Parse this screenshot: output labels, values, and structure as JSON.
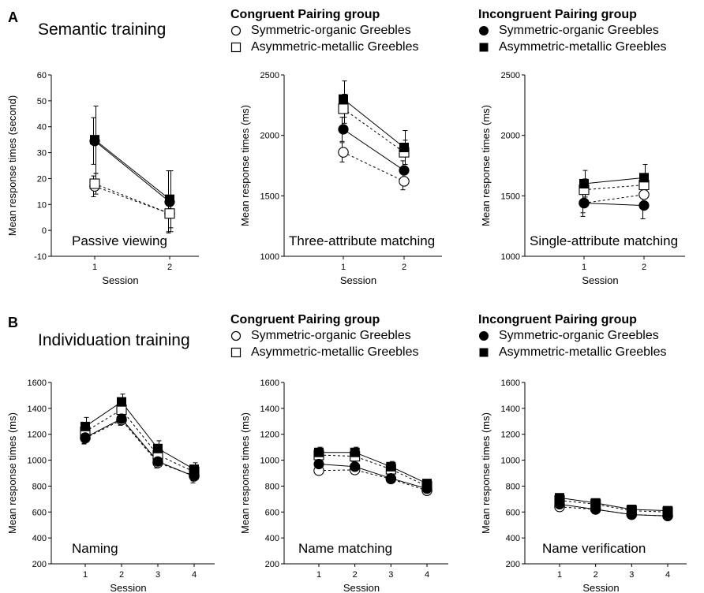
{
  "panels": {
    "a": {
      "letter": "A",
      "title": "Semantic training"
    },
    "b": {
      "letter": "B",
      "title": "Individuation training"
    }
  },
  "legends": {
    "congruent": {
      "heading": "Congruent Pairing group",
      "items": [
        {
          "label": "Symmetric-organic Greebles",
          "marker": "open-circle"
        },
        {
          "label": "Asymmetric-metallic Greebles",
          "marker": "open-square"
        }
      ]
    },
    "incongruent": {
      "heading": "Incongruent Pairing group",
      "items": [
        {
          "label": "Symmetric-organic Greebles",
          "marker": "filled-circle"
        },
        {
          "label": "Asymmetric-metallic Greebles",
          "marker": "filled-square"
        }
      ]
    }
  },
  "chart_data": [
    {
      "type": "line",
      "panel": "A",
      "title": "Passive viewing",
      "xlabel": "Session",
      "ylabel": "Mean response times (second)",
      "x": [
        1,
        2
      ],
      "ylim": [
        -10,
        60
      ],
      "yticks": [
        -10,
        0,
        10,
        20,
        30,
        40,
        50,
        60
      ],
      "series": [
        {
          "name": "Congruent Pairing group – Symmetric-organic Greebles",
          "marker": "open-circle",
          "line": "dashed",
          "values": [
            17,
            6.5
          ],
          "err": [
            4,
            7
          ]
        },
        {
          "name": "Congruent Pairing group – Asymmetric-metallic Greebles",
          "marker": "open-square",
          "line": "dashed",
          "values": [
            18,
            6.5
          ],
          "err": [
            4,
            7
          ]
        },
        {
          "name": "Incongruent Pairing group – Symmetric-organic Greebles",
          "marker": "filled-circle",
          "line": "solid",
          "values": [
            34.5,
            11
          ],
          "err": [
            9,
            12
          ]
        },
        {
          "name": "Incongruent Pairing group – Asymmetric-metallic Greebles",
          "marker": "filled-square",
          "line": "solid",
          "values": [
            35,
            12
          ],
          "err": [
            13,
            11
          ]
        }
      ]
    },
    {
      "type": "line",
      "panel": "A",
      "title": "Three-attribute matching",
      "xlabel": "Session",
      "ylabel": "Mean response times (ms)",
      "x": [
        1,
        2
      ],
      "ylim": [
        1000,
        2500
      ],
      "yticks": [
        1000,
        1500,
        2000,
        2500
      ],
      "series": [
        {
          "name": "Congruent Pairing group – Symmetric-organic Greebles",
          "marker": "open-circle",
          "line": "dashed",
          "values": [
            1860,
            1620
          ],
          "err": [
            80,
            70
          ]
        },
        {
          "name": "Congruent Pairing group – Asymmetric-metallic Greebles",
          "marker": "open-square",
          "line": "dashed",
          "values": [
            2220,
            1860
          ],
          "err": [
            120,
            100
          ]
        },
        {
          "name": "Incongruent Pairing group – Symmetric-organic Greebles",
          "marker": "filled-circle",
          "line": "solid",
          "values": [
            2050,
            1710
          ],
          "err": [
            100,
            80
          ]
        },
        {
          "name": "Incongruent Pairing group – Asymmetric-metallic Greebles",
          "marker": "filled-square",
          "line": "solid",
          "values": [
            2300,
            1900
          ],
          "err": [
            150,
            140
          ]
        }
      ]
    },
    {
      "type": "line",
      "panel": "A",
      "title": "Single-attribute matching",
      "xlabel": "Session",
      "ylabel": "Mean response times (ms)",
      "x": [
        1,
        2
      ],
      "ylim": [
        1000,
        2500
      ],
      "yticks": [
        1000,
        1500,
        2000,
        2500
      ],
      "series": [
        {
          "name": "Congruent Pairing group – Symmetric-organic Greebles",
          "marker": "open-circle",
          "line": "dashed",
          "values": [
            1440,
            1510
          ],
          "err": [
            80,
            80
          ]
        },
        {
          "name": "Congruent Pairing group – Asymmetric-metallic Greebles",
          "marker": "open-square",
          "line": "dashed",
          "values": [
            1550,
            1590
          ],
          "err": [
            90,
            90
          ]
        },
        {
          "name": "Incongruent Pairing group – Symmetric-organic Greebles",
          "marker": "filled-circle",
          "line": "solid",
          "values": [
            1440,
            1420
          ],
          "err": [
            110,
            110
          ]
        },
        {
          "name": "Incongruent Pairing group – Asymmetric-metallic Greebles",
          "marker": "filled-square",
          "line": "solid",
          "values": [
            1600,
            1650
          ],
          "err": [
            110,
            110
          ]
        }
      ]
    },
    {
      "type": "line",
      "panel": "B",
      "title": "Naming",
      "xlabel": "Session",
      "ylabel": "Mean response times (ms)",
      "x": [
        1,
        2,
        3,
        4
      ],
      "ylim": [
        200,
        1600
      ],
      "yticks": [
        200,
        400,
        600,
        800,
        1000,
        1200,
        1400,
        1600
      ],
      "series": [
        {
          "name": "Congruent Pairing group – Symmetric-organic Greebles",
          "marker": "open-circle",
          "line": "dashed",
          "values": [
            1170,
            1310,
            980,
            880
          ],
          "err": [
            40,
            40,
            40,
            40
          ]
        },
        {
          "name": "Congruent Pairing group – Asymmetric-metallic Greebles",
          "marker": "open-square",
          "line": "dashed",
          "values": [
            1220,
            1390,
            1040,
            910
          ],
          "err": [
            40,
            40,
            40,
            40
          ]
        },
        {
          "name": "Incongruent Pairing group – Symmetric-organic Greebles",
          "marker": "filled-circle",
          "line": "solid",
          "values": [
            1175,
            1320,
            990,
            875
          ],
          "err": [
            50,
            50,
            50,
            50
          ]
        },
        {
          "name": "Incongruent Pairing group – Asymmetric-metallic Greebles",
          "marker": "filled-square",
          "line": "solid",
          "values": [
            1260,
            1450,
            1090,
            930
          ],
          "err": [
            70,
            60,
            60,
            50
          ]
        }
      ]
    },
    {
      "type": "line",
      "panel": "B",
      "title": "Name matching",
      "xlabel": "Session",
      "ylabel": "Mean response times (ms)",
      "x": [
        1,
        2,
        3,
        4
      ],
      "ylim": [
        200,
        1600
      ],
      "yticks": [
        200,
        400,
        600,
        800,
        1000,
        1200,
        1400,
        1600
      ],
      "series": [
        {
          "name": "Congruent Pairing group – Symmetric-organic Greebles",
          "marker": "open-circle",
          "line": "dashed",
          "values": [
            920,
            925,
            855,
            765
          ],
          "err": [
            30,
            30,
            30,
            30
          ]
        },
        {
          "name": "Congruent Pairing group – Asymmetric-metallic Greebles",
          "marker": "open-square",
          "line": "dashed",
          "values": [
            1040,
            1030,
            930,
            800
          ],
          "err": [
            30,
            30,
            30,
            30
          ]
        },
        {
          "name": "Incongruent Pairing group – Symmetric-organic Greebles",
          "marker": "filled-circle",
          "line": "solid",
          "values": [
            970,
            950,
            860,
            780
          ],
          "err": [
            40,
            40,
            30,
            30
          ]
        },
        {
          "name": "Incongruent Pairing group – Asymmetric-metallic Greebles",
          "marker": "filled-square",
          "line": "solid",
          "values": [
            1060,
            1060,
            950,
            820
          ],
          "err": [
            40,
            40,
            40,
            30
          ]
        }
      ]
    },
    {
      "type": "line",
      "panel": "B",
      "title": "Name verification",
      "xlabel": "Session",
      "ylabel": "Mean response times (ms)",
      "x": [
        1,
        2,
        3,
        4
      ],
      "ylim": [
        200,
        1600
      ],
      "yticks": [
        200,
        400,
        600,
        800,
        1000,
        1200,
        1400,
        1600
      ],
      "series": [
        {
          "name": "Congruent Pairing group – Symmetric-organic Greebles",
          "marker": "open-circle",
          "line": "dashed",
          "values": [
            640,
            620,
            580,
            570
          ],
          "err": [
            20,
            20,
            20,
            20
          ]
        },
        {
          "name": "Congruent Pairing group – Asymmetric-metallic Greebles",
          "marker": "open-square",
          "line": "dashed",
          "values": [
            690,
            660,
            610,
            600
          ],
          "err": [
            20,
            20,
            20,
            20
          ]
        },
        {
          "name": "Incongruent Pairing group – Symmetric-organic Greebles",
          "marker": "filled-circle",
          "line": "solid",
          "values": [
            660,
            620,
            580,
            570
          ],
          "err": [
            30,
            30,
            30,
            30
          ]
        },
        {
          "name": "Incongruent Pairing group – Asymmetric-metallic Greebles",
          "marker": "filled-square",
          "line": "solid",
          "values": [
            710,
            670,
            620,
            610
          ],
          "err": [
            30,
            30,
            30,
            30
          ]
        }
      ]
    }
  ]
}
